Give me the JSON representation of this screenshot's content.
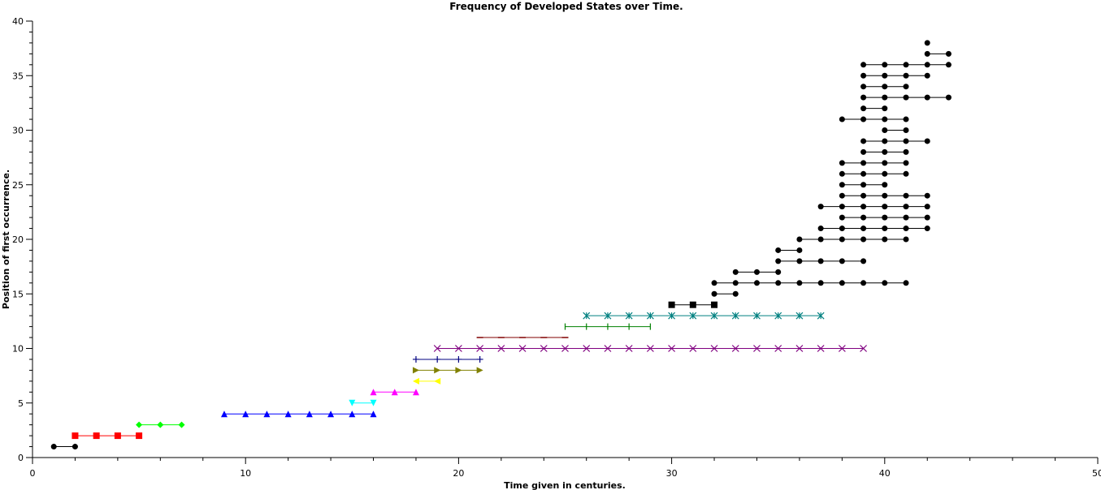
{
  "chart_data": {
    "type": "line",
    "title": "Frequency of Developed States over Time.",
    "xlabel": "Time given in centuries.",
    "ylabel": "Position of first occurrence.",
    "xlim": [
      0,
      50
    ],
    "ylim": [
      0,
      40
    ],
    "x_ticks": [
      0,
      10,
      20,
      30,
      40,
      50
    ],
    "y_ticks": [
      0,
      5,
      10,
      15,
      20,
      25,
      30,
      35,
      40
    ],
    "grid": false,
    "series": [
      {
        "y": 1,
        "x": [
          1,
          2
        ],
        "color": "#000000",
        "marker": "circle"
      },
      {
        "y": 2,
        "x": [
          2,
          3,
          4,
          5
        ],
        "color": "#ff0000",
        "marker": "square"
      },
      {
        "y": 3,
        "x": [
          5,
          6,
          7
        ],
        "color": "#00ff00",
        "marker": "diamond"
      },
      {
        "y": 4,
        "x": [
          9,
          10,
          11,
          12,
          13,
          14,
          15,
          16
        ],
        "color": "#0000ff",
        "marker": "triangle-up"
      },
      {
        "y": 5,
        "x": [
          15,
          16
        ],
        "color": "#00ffff",
        "marker": "triangle-down"
      },
      {
        "y": 6,
        "x": [
          16,
          17,
          18
        ],
        "color": "#ff00ff",
        "marker": "triangle-up"
      },
      {
        "y": 7,
        "x": [
          18,
          19
        ],
        "color": "#ffff00",
        "marker": "triangle-left"
      },
      {
        "y": 8,
        "x": [
          18,
          19,
          20,
          21
        ],
        "color": "#808000",
        "marker": "triangle-right"
      },
      {
        "y": 9,
        "x": [
          18,
          19,
          20,
          21
        ],
        "color": "#000080",
        "marker": "plus"
      },
      {
        "y": 10,
        "x": [
          19,
          20,
          21,
          22,
          23,
          24,
          25,
          26,
          27,
          28,
          29,
          30,
          31,
          32,
          33,
          34,
          35,
          36,
          37,
          38,
          39
        ],
        "color": "#800080",
        "marker": "cross"
      },
      {
        "y": 11,
        "x": [
          21,
          22,
          23,
          24,
          25
        ],
        "color": "#800000",
        "marker": "hline"
      },
      {
        "y": 12,
        "x": [
          25,
          26,
          27,
          28,
          29
        ],
        "color": "#008000",
        "marker": "vline"
      },
      {
        "y": 13,
        "x": [
          26,
          27,
          28,
          29,
          30,
          31,
          32,
          33,
          34,
          35,
          36,
          37
        ],
        "color": "#008080",
        "marker": "star"
      },
      {
        "y": 14,
        "x": [
          30,
          31,
          32
        ],
        "color": "#000000",
        "marker": "square"
      },
      {
        "y": 15,
        "x": [
          32,
          33
        ],
        "color": "#000000",
        "marker": "circle"
      },
      {
        "y": 16,
        "x": [
          32,
          33,
          34,
          35,
          36,
          37,
          38,
          39,
          40,
          41
        ],
        "color": "#000000",
        "marker": "circle"
      },
      {
        "y": 17,
        "x": [
          33,
          34,
          35
        ],
        "color": "#000000",
        "marker": "circle"
      },
      {
        "y": 18,
        "x": [
          35,
          36,
          37,
          38,
          39
        ],
        "color": "#000000",
        "marker": "circle"
      },
      {
        "y": 19,
        "x": [
          35,
          36
        ],
        "color": "#000000",
        "marker": "circle"
      },
      {
        "y": 20,
        "x": [
          36,
          37,
          38,
          39,
          40,
          41
        ],
        "color": "#000000",
        "marker": "circle"
      },
      {
        "y": 21,
        "x": [
          37,
          38,
          39,
          40,
          41,
          42
        ],
        "color": "#000000",
        "marker": "circle"
      },
      {
        "y": 22,
        "x": [
          38,
          39,
          40,
          41,
          42
        ],
        "color": "#000000",
        "marker": "circle"
      },
      {
        "y": 23,
        "x": [
          37,
          38,
          39,
          40,
          41,
          42
        ],
        "color": "#000000",
        "marker": "circle"
      },
      {
        "y": 24,
        "x": [
          38,
          39,
          40,
          41,
          42
        ],
        "color": "#000000",
        "marker": "circle"
      },
      {
        "y": 25,
        "x": [
          38,
          39,
          40
        ],
        "color": "#000000",
        "marker": "circle"
      },
      {
        "y": 26,
        "x": [
          38,
          39,
          40,
          41
        ],
        "color": "#000000",
        "marker": "circle"
      },
      {
        "y": 27,
        "x": [
          38,
          39,
          40,
          41
        ],
        "color": "#000000",
        "marker": "circle"
      },
      {
        "y": 28,
        "x": [
          39,
          40,
          41
        ],
        "color": "#000000",
        "marker": "circle"
      },
      {
        "y": 29,
        "x": [
          39,
          40,
          41,
          42
        ],
        "color": "#000000",
        "marker": "circle"
      },
      {
        "y": 30,
        "x": [
          40,
          41
        ],
        "color": "#000000",
        "marker": "circle"
      },
      {
        "y": 31,
        "x": [
          38,
          39,
          40,
          41
        ],
        "color": "#000000",
        "marker": "circle"
      },
      {
        "y": 32,
        "x": [
          39,
          40
        ],
        "color": "#000000",
        "marker": "circle"
      },
      {
        "y": 33,
        "x": [
          39,
          40,
          41,
          42,
          43
        ],
        "color": "#000000",
        "marker": "circle"
      },
      {
        "y": 34,
        "x": [
          39,
          40,
          41
        ],
        "color": "#000000",
        "marker": "circle"
      },
      {
        "y": 35,
        "x": [
          39,
          40,
          41,
          42
        ],
        "color": "#000000",
        "marker": "circle"
      },
      {
        "y": 36,
        "x": [
          39,
          40,
          41,
          42,
          43
        ],
        "color": "#000000",
        "marker": "circle"
      },
      {
        "y": 37,
        "x": [
          42,
          43
        ],
        "color": "#000000",
        "marker": "circle"
      },
      {
        "y": 38,
        "x": [
          42
        ],
        "color": "#000000",
        "marker": "circle"
      }
    ]
  }
}
